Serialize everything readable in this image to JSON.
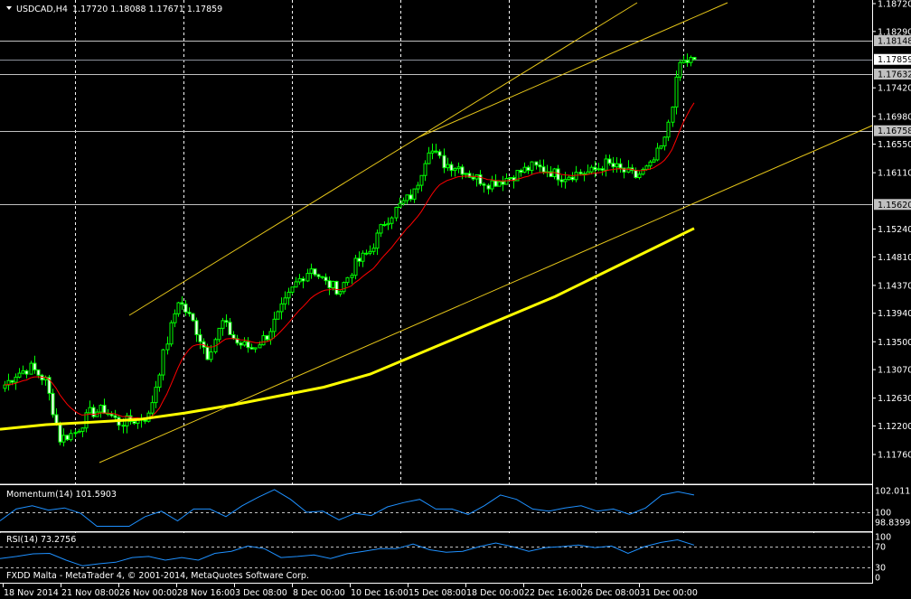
{
  "header": {
    "symbol": "USDCAD,H4",
    "ohlc": "1.17720 1.18088 1.17671 1.17859"
  },
  "copyright": "FXDD Malta - MetaTrader 4, © 2001-2014, MetaQuotes Software Corp.",
  "colors": {
    "background": "#000000",
    "candle_outline": "#00ff00",
    "bull_body": "#000000",
    "bear_body": "#ffffff",
    "fast_ma": "#ff0000",
    "slow_ma": "#ffff00",
    "trendline": "#ffd700",
    "indicator_line": "#1e90ff",
    "level_line": "#c0c0c0"
  },
  "chart_data": [
    {
      "type": "candlestick",
      "title": "USDCAD,H4",
      "ylim": [
        1.1176,
        1.1872
      ],
      "y_ticks": [
        "1.18720",
        "1.18290",
        "1.17420",
        "1.16980",
        "1.16550",
        "1.16110",
        "1.15240",
        "1.14810",
        "1.14370",
        "1.13940",
        "1.13500",
        "1.13070",
        "1.12630",
        "1.12200",
        "1.11760"
      ],
      "x_ticks": [
        "18 Nov 2014",
        "21 Nov 08:00",
        "26 Nov 00:00",
        "28 Nov 16:00",
        "3 Dec 08:00",
        "8 Dec 00:00",
        "10 Dec 16:00",
        "15 Dec 08:00",
        "18 Dec 00:00",
        "22 Dec 16:00",
        "26 Dec 08:00",
        "31 Dec 00:00"
      ],
      "grid": "vertical dashed",
      "close_path": [
        1.1278,
        1.13,
        1.131,
        1.129,
        1.12,
        1.121,
        1.124,
        1.1245,
        1.1225,
        1.1229,
        1.1235,
        1.133,
        1.1415,
        1.138,
        1.133,
        1.138,
        1.1348,
        1.134,
        1.136,
        1.14,
        1.144,
        1.1465,
        1.144,
        1.143,
        1.147,
        1.149,
        1.1535,
        1.156,
        1.158,
        1.165,
        1.1625,
        1.162,
        1.1605,
        1.1595,
        1.16,
        1.161,
        1.162,
        1.1615,
        1.1605,
        1.161,
        1.1612,
        1.1625,
        1.1615,
        1.1605,
        1.162,
        1.166,
        1.178,
        1.17859
      ],
      "slow_ma": [
        1.1215,
        1.1222,
        1.1226,
        1.123,
        1.124,
        1.1252,
        1.1266,
        1.128,
        1.13,
        1.133,
        1.136,
        1.139,
        1.142,
        1.1455,
        1.149,
        1.1525
      ],
      "levels": [
        {
          "price": "1.18148",
          "style": "gray"
        },
        {
          "price": "1.17859",
          "style": "current"
        },
        {
          "price": "1.17632",
          "style": "gray"
        },
        {
          "price": "1.16758",
          "style": "gray"
        },
        {
          "price": "1.15620",
          "style": "gray"
        }
      ]
    },
    {
      "type": "line",
      "title": "Momentum(14) 101.5903",
      "y_ticks": [
        "102.0115",
        "100",
        "98.8399"
      ],
      "ylim": [
        98.6,
        102.3
      ],
      "level": 100,
      "values": [
        99.2,
        100.3,
        100.6,
        100.2,
        100.4,
        99.9,
        98.7,
        98.7,
        98.7,
        99.6,
        100.1,
        99.2,
        100.3,
        100.3,
        99.6,
        100.6,
        101.4,
        102.1,
        101.2,
        100.0,
        100.1,
        99.3,
        99.9,
        99.7,
        100.5,
        100.9,
        101.2,
        100.3,
        100.3,
        99.8,
        100.6,
        101.6,
        101.2,
        100.3,
        100.1,
        100.4,
        100.6,
        100.1,
        100.3,
        99.8,
        100.4,
        101.6,
        101.9,
        101.6
      ]
    },
    {
      "type": "line",
      "title": "RSI(14) 73.2756",
      "y_ticks": [
        "100",
        "70",
        "30",
        "0"
      ],
      "ylim": [
        0,
        100
      ],
      "levels": [
        70,
        30
      ],
      "values": [
        47,
        51,
        56,
        57,
        44,
        33,
        37,
        40,
        49,
        51,
        44,
        49,
        44,
        57,
        61,
        71,
        66,
        49,
        51,
        54,
        47,
        56,
        61,
        66,
        66,
        75,
        64,
        59,
        61,
        70,
        77,
        70,
        61,
        68,
        70,
        73,
        68,
        71,
        57,
        70,
        78,
        83,
        73
      ]
    }
  ]
}
